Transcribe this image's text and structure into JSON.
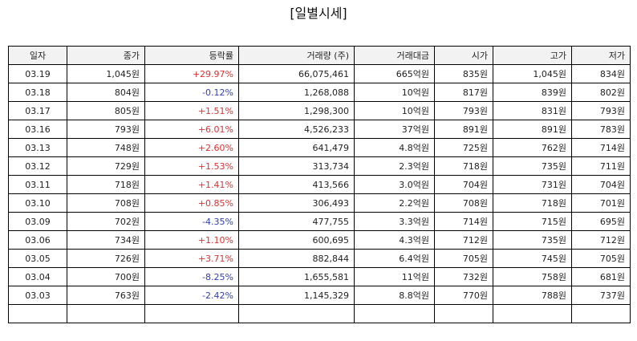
{
  "title": "[일별시세]",
  "colors": {
    "up": "#e03030",
    "down": "#2e3eb8"
  },
  "columns": [
    "일자",
    "종가",
    "등락률",
    "거래량 (주)",
    "거래대금",
    "시가",
    "고가",
    "저가"
  ],
  "rows": [
    {
      "date": "03.19",
      "close": "1,045원",
      "change": "+29.97%",
      "dir": "up",
      "volume": "66,075,461",
      "amount": "665억원",
      "open": "835원",
      "high": "1,045원",
      "low": "834원"
    },
    {
      "date": "03.18",
      "close": "804원",
      "change": "-0.12%",
      "dir": "down",
      "volume": "1,268,088",
      "amount": "10억원",
      "open": "817원",
      "high": "839원",
      "low": "802원"
    },
    {
      "date": "03.17",
      "close": "805원",
      "change": "+1.51%",
      "dir": "up",
      "volume": "1,298,300",
      "amount": "10억원",
      "open": "793원",
      "high": "831원",
      "low": "793원"
    },
    {
      "date": "03.16",
      "close": "793원",
      "change": "+6.01%",
      "dir": "up",
      "volume": "4,526,233",
      "amount": "37억원",
      "open": "891원",
      "high": "891원",
      "low": "783원"
    },
    {
      "date": "03.13",
      "close": "748원",
      "change": "+2.60%",
      "dir": "up",
      "volume": "641,479",
      "amount": "4.8억원",
      "open": "725원",
      "high": "762원",
      "low": "714원"
    },
    {
      "date": "03.12",
      "close": "729원",
      "change": "+1.53%",
      "dir": "up",
      "volume": "313,734",
      "amount": "2.3억원",
      "open": "718원",
      "high": "735원",
      "low": "711원"
    },
    {
      "date": "03.11",
      "close": "718원",
      "change": "+1.41%",
      "dir": "up",
      "volume": "413,566",
      "amount": "3.0억원",
      "open": "704원",
      "high": "731원",
      "low": "704원"
    },
    {
      "date": "03.10",
      "close": "708원",
      "change": "+0.85%",
      "dir": "up",
      "volume": "306,493",
      "amount": "2.2억원",
      "open": "708원",
      "high": "718원",
      "low": "701원"
    },
    {
      "date": "03.09",
      "close": "702원",
      "change": "-4.35%",
      "dir": "down",
      "volume": "477,755",
      "amount": "3.3억원",
      "open": "714원",
      "high": "715원",
      "low": "695원"
    },
    {
      "date": "03.06",
      "close": "734원",
      "change": "+1.10%",
      "dir": "up",
      "volume": "600,695",
      "amount": "4.3억원",
      "open": "712원",
      "high": "735원",
      "low": "712원"
    },
    {
      "date": "03.05",
      "close": "726원",
      "change": "+3.71%",
      "dir": "up",
      "volume": "882,844",
      "amount": "6.4억원",
      "open": "705원",
      "high": "745원",
      "low": "705원"
    },
    {
      "date": "03.04",
      "close": "700원",
      "change": "-8.25%",
      "dir": "down",
      "volume": "1,655,581",
      "amount": "11억원",
      "open": "732원",
      "high": "758원",
      "low": "681원"
    },
    {
      "date": "03.03",
      "close": "763원",
      "change": "-2.42%",
      "dir": "down",
      "volume": "1,145,329",
      "amount": "8.8억원",
      "open": "770원",
      "high": "788원",
      "low": "737원"
    },
    {
      "date": "",
      "close": "",
      "change": "",
      "dir": "",
      "volume": "",
      "amount": "",
      "open": "",
      "high": "",
      "low": ""
    }
  ]
}
